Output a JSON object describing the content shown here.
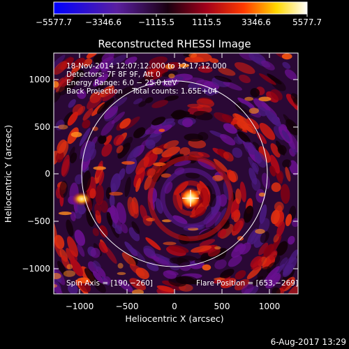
{
  "colorbar": {
    "tick_labels": [
      "−5577.7",
      "−3346.6",
      "−1115.5",
      "1115.5",
      "3346.6",
      "5577.7"
    ],
    "range": [
      -5577.7,
      5577.7
    ],
    "colormap": "blue-purple-red-yellow-white",
    "colors": [
      "#0000ff",
      "#6a1f9a",
      "#000000",
      "#a0001a",
      "#ff3a00",
      "#ffd800",
      "#ffffff"
    ]
  },
  "plot": {
    "title": "Reconstructed RHESSI Image",
    "xlabel": "Heliocentric X (arcsec)",
    "ylabel": "Heliocentric Y (arcsec)",
    "x_tick_labels": [
      "−1000",
      "−500",
      "0",
      "500",
      "1000"
    ],
    "y_tick_labels": [
      "1000",
      "500",
      "0",
      "−500",
      "−1000"
    ],
    "x_range": [
      -1290,
      1290
    ],
    "y_range": [
      -1290,
      1290
    ],
    "solar_limb_radius_arcsec": 975
  },
  "info_lines": [
    "18-Nov-2014 12:07:12.000 to 12:17:12.000",
    "Detectors: 7F 8F 9F, Att 0",
    "Energy Range: 6.0 − 25.0 keV",
    "Back Projection    Total counts: 1.65E+04"
  ],
  "footer": {
    "spin_axis": "Spin Axis = [190,−260]",
    "flare_position": "Flare Position = [653,−269]"
  },
  "timestamp": "6-Aug-2017 13:29"
}
